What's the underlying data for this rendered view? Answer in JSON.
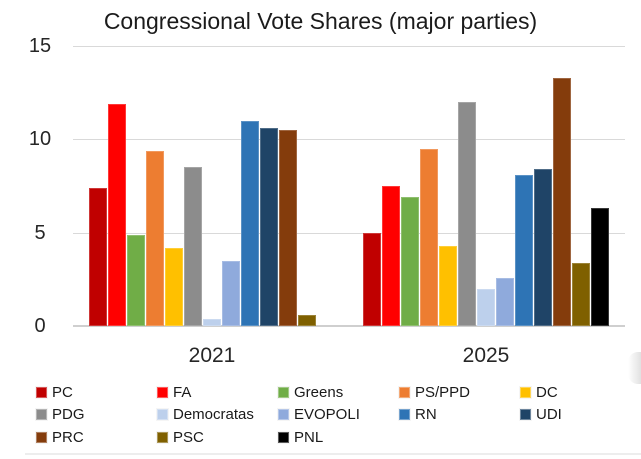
{
  "title": "Congressional Vote Shares (major parties)",
  "chart_data": {
    "type": "bar",
    "title": "Congressional Vote Shares (major parties)",
    "categories": [
      "2021",
      "2025"
    ],
    "series": [
      {
        "name": "PC",
        "color": "#C00000",
        "values": [
          7.4,
          5.0
        ]
      },
      {
        "name": "FA",
        "color": "#FF0000",
        "values": [
          11.9,
          7.5
        ]
      },
      {
        "name": "Greens",
        "color": "#70AD47",
        "values": [
          4.9,
          6.9
        ]
      },
      {
        "name": "PS/PPD",
        "color": "#ED7D31",
        "values": [
          9.4,
          9.5
        ]
      },
      {
        "name": "DC",
        "color": "#FFC000",
        "values": [
          4.2,
          4.3
        ]
      },
      {
        "name": "PDG",
        "color": "#8C8C8C",
        "values": [
          8.5,
          12.0
        ]
      },
      {
        "name": "Democratas",
        "color": "#BDD0EC",
        "values": [
          0.4,
          2.0
        ]
      },
      {
        "name": "EVOPOLI",
        "color": "#8FAADC",
        "values": [
          3.5,
          2.6
        ]
      },
      {
        "name": "RN",
        "color": "#2E74B5",
        "values": [
          11.0,
          8.1
        ]
      },
      {
        "name": "UDI",
        "color": "#1F4467",
        "values": [
          10.6,
          8.4
        ]
      },
      {
        "name": "PRC",
        "color": "#843C0C",
        "values": [
          10.5,
          13.3
        ]
      },
      {
        "name": "PSC",
        "color": "#7F6000",
        "values": [
          0.6,
          3.4
        ]
      },
      {
        "name": "PNL",
        "color": "#000000",
        "values": [
          0,
          6.3
        ]
      }
    ],
    "ylim": [
      0,
      15
    ],
    "yticks": [
      15,
      10,
      5,
      0
    ],
    "grid": true,
    "legend_position": "bottom",
    "legend_columns": 5,
    "xlabel": "",
    "ylabel": ""
  }
}
